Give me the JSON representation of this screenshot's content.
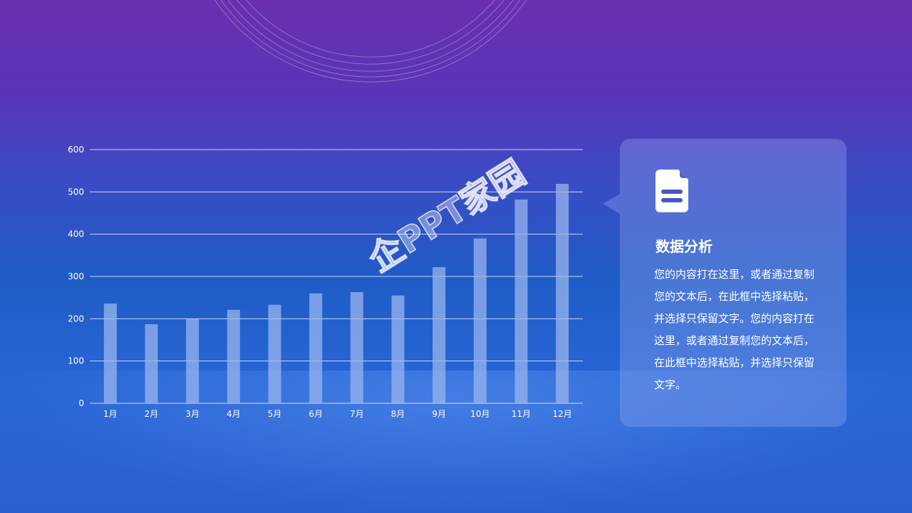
{
  "chart_data": {
    "type": "bar",
    "categories": [
      "1月",
      "2月",
      "3月",
      "4月",
      "5月",
      "6月",
      "7月",
      "8月",
      "9月",
      "10月",
      "11月",
      "12月"
    ],
    "values": [
      236,
      187,
      199,
      221,
      233,
      260,
      263,
      255,
      322,
      390,
      482,
      519
    ],
    "ylim": [
      0,
      600
    ],
    "yticks": [
      "0",
      "100",
      "200",
      "300",
      "400",
      "500",
      "600"
    ],
    "grid": true,
    "bar_color": "#9ab4ee"
  },
  "panel": {
    "icon": "document-icon",
    "title": "数据分析",
    "body": "您的内容打在这里，或者通过复制您的文本后，在此框中选择粘贴，并选择只保留文字。您的内容打在这里，或者通过复制您的文本后，在此框中选择粘贴，并选择只保留文字。"
  },
  "watermark": "企PPT家园"
}
